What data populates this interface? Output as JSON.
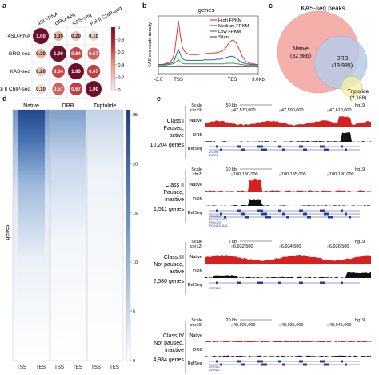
{
  "panel_letters": [
    "a",
    "b",
    "c",
    "d",
    "e"
  ],
  "panel_a": {
    "labels": [
      "4SU-RNA",
      "GRO-seq",
      "KAS-seq",
      "Pol II ChIP-seq"
    ],
    "colorbar_ticks": [
      "1",
      "0.8",
      "0.6",
      "0.4",
      "0.2",
      "0"
    ],
    "high_color": "#6b0f2a",
    "low_color": "#f4e4dc"
  },
  "chart_data": [
    {
      "type": "heatmap",
      "rows": [
        "4SU-RNA",
        "GRO-seq",
        "KAS-seq",
        "Pol II ChIP-seq"
      ],
      "cols": [
        "4SU-RNA",
        "GRO-seq",
        "KAS-seq",
        "Pol II ChIP-seq"
      ],
      "values": [
        [
          1.0,
          0.3,
          0.2,
          0.1
        ],
        [
          0.3,
          1.0,
          0.64,
          0.57
        ],
        [
          0.2,
          0.64,
          1.0,
          0.67
        ],
        [
          0.1,
          0.57,
          0.67,
          1.0
        ]
      ],
      "value_labels": [
        [
          "1.00",
          "0.30",
          "0.20",
          "0.10"
        ],
        [
          "0.30",
          "1.00",
          "0.64",
          "0.57"
        ],
        [
          "0.20",
          "0.64",
          "1.00",
          "0.67"
        ],
        [
          "0.10",
          "0.57",
          "0.67",
          "1.00"
        ]
      ]
    },
    {
      "type": "line",
      "title": "genes",
      "ylabel": "KAS-seq reads density",
      "x_tick_labels": [
        "-3.0",
        "TSS",
        "TES",
        "3.0Kb"
      ],
      "x": [
        0,
        2,
        4,
        6,
        8,
        10,
        12,
        14,
        16,
        18,
        20,
        22,
        24,
        26,
        28,
        30,
        32,
        34,
        36,
        38,
        40,
        42,
        44,
        46,
        48,
        50,
        52,
        54,
        56,
        58,
        60,
        62,
        64,
        66,
        68,
        70,
        72,
        74,
        76,
        78,
        80,
        82,
        84,
        86,
        88,
        90,
        92,
        94,
        96,
        98,
        100
      ],
      "ylim": [
        0,
        1
      ],
      "series": [
        {
          "name": "High FPKM",
          "color": "#e8392c",
          "values": [
            0.16,
            0.16,
            0.16,
            0.17,
            0.18,
            0.19,
            0.21,
            0.25,
            0.35,
            0.62,
            0.92,
            0.66,
            0.46,
            0.39,
            0.36,
            0.34,
            0.33,
            0.33,
            0.33,
            0.33,
            0.33,
            0.34,
            0.34,
            0.34,
            0.35,
            0.35,
            0.35,
            0.36,
            0.36,
            0.36,
            0.37,
            0.38,
            0.39,
            0.42,
            0.46,
            0.52,
            0.56,
            0.58,
            0.57,
            0.53,
            0.46,
            0.38,
            0.3,
            0.25,
            0.21,
            0.19,
            0.18,
            0.17,
            0.17,
            0.16,
            0.16
          ]
        },
        {
          "name": "Medium FPKM",
          "color": "#2a64b0",
          "values": [
            0.16,
            0.16,
            0.16,
            0.16,
            0.17,
            0.17,
            0.18,
            0.19,
            0.23,
            0.33,
            0.42,
            0.33,
            0.26,
            0.24,
            0.23,
            0.23,
            0.23,
            0.23,
            0.23,
            0.23,
            0.23,
            0.23,
            0.23,
            0.24,
            0.24,
            0.24,
            0.24,
            0.24,
            0.24,
            0.25,
            0.25,
            0.25,
            0.26,
            0.27,
            0.28,
            0.29,
            0.3,
            0.3,
            0.29,
            0.27,
            0.24,
            0.21,
            0.19,
            0.18,
            0.17,
            0.17,
            0.16,
            0.16,
            0.16,
            0.16,
            0.16
          ]
        },
        {
          "name": "Low FPKM",
          "color": "#3c9a3c",
          "values": [
            0.15,
            0.15,
            0.15,
            0.15,
            0.15,
            0.16,
            0.16,
            0.17,
            0.18,
            0.21,
            0.24,
            0.21,
            0.18,
            0.17,
            0.17,
            0.17,
            0.17,
            0.17,
            0.17,
            0.17,
            0.17,
            0.17,
            0.17,
            0.17,
            0.17,
            0.17,
            0.17,
            0.17,
            0.17,
            0.17,
            0.17,
            0.17,
            0.17,
            0.17,
            0.18,
            0.18,
            0.18,
            0.18,
            0.18,
            0.17,
            0.17,
            0.16,
            0.16,
            0.15,
            0.15,
            0.15,
            0.15,
            0.15,
            0.15,
            0.15,
            0.15
          ]
        },
        {
          "name": "Silent",
          "color": "#8b3a9c",
          "values": [
            0.13,
            0.13,
            0.13,
            0.13,
            0.13,
            0.13,
            0.13,
            0.13,
            0.13,
            0.13,
            0.14,
            0.13,
            0.13,
            0.13,
            0.13,
            0.13,
            0.13,
            0.13,
            0.13,
            0.13,
            0.13,
            0.13,
            0.13,
            0.13,
            0.13,
            0.13,
            0.13,
            0.13,
            0.13,
            0.13,
            0.13,
            0.13,
            0.13,
            0.13,
            0.13,
            0.13,
            0.13,
            0.13,
            0.13,
            0.13,
            0.13,
            0.13,
            0.13,
            0.13,
            0.13,
            0.13,
            0.13,
            0.13,
            0.13,
            0.13,
            0.13
          ]
        }
      ]
    }
  ],
  "panel_c": {
    "title": "KAS-seq peaks",
    "sets": [
      {
        "name": "Native",
        "count": "(32,986)",
        "color": "#f4a7a3"
      },
      {
        "name": "DRB",
        "count": "(13,935)",
        "color": "#b7cbe6"
      },
      {
        "name": "Triptolide",
        "count": "(2,188)",
        "color": "#f6f0a0"
      }
    ]
  },
  "panel_d": {
    "columns": [
      "Native",
      "DRB",
      "Triptolide"
    ],
    "x_ticks": [
      "TSS",
      "TES"
    ],
    "ylabel": "genes",
    "colorbar_ticks": [
      "25",
      "20",
      "15",
      "10",
      "5",
      "0"
    ],
    "colorbar_top": "#1c3f86",
    "colorbar_bottom": "#ffffff"
  },
  "panel_e": {
    "tracks": [
      {
        "class": "Class I",
        "paused": "Paused,",
        "activity": "active",
        "count": "10,204 genes",
        "scale": "50 kb",
        "genome": "hg19",
        "chrom": "chr19:",
        "coords": [
          "47,570,000",
          "47,590,000",
          "47,610,000"
        ],
        "genes": [
          "ZC3H4",
          "ZC3H4"
        ]
      },
      {
        "class": "Class II",
        "paused": "Paused,",
        "activity": "inactive",
        "count": "1,511 genes",
        "scale": "10 kb",
        "genome": "hg19",
        "chrom": "chr7:",
        "coords": [
          "100,180,000",
          "100,185,000",
          "100,190,000"
        ],
        "genes": [
          "FBXO24",
          "PCOLCE-AS1",
          "FBXO24",
          "PCOLCE-AS1"
        ]
      },
      {
        "class": "Class III",
        "paused": "Not paused,",
        "activity": "active",
        "count": "2,580 genes",
        "scale": "2 kb",
        "genome": "hg19",
        "chrom": "chr12:",
        "coords": [
          "6,932,500",
          "6,934,500",
          "6,936,500"
        ],
        "genes": [
          "GPR162"
        ]
      },
      {
        "class": "Class IV",
        "paused": "Not paused,",
        "activity": "inactive",
        "count": "4,984 genes",
        "scale": "20 kb",
        "genome": "hg19",
        "chrom": "chr19:",
        "coords": [
          "48,025,000",
          "48,035,000",
          "48,045,000"
        ],
        "genes": [
          "ZNF541",
          "ZNF541"
        ]
      }
    ],
    "row_labels": {
      "scale": "Scale",
      "native": "Native",
      "drb": "DRB",
      "refseq": "RefSeq"
    },
    "native_color": "#d92020",
    "drb_color": "#111111",
    "gene_color": "#2a3d99"
  }
}
